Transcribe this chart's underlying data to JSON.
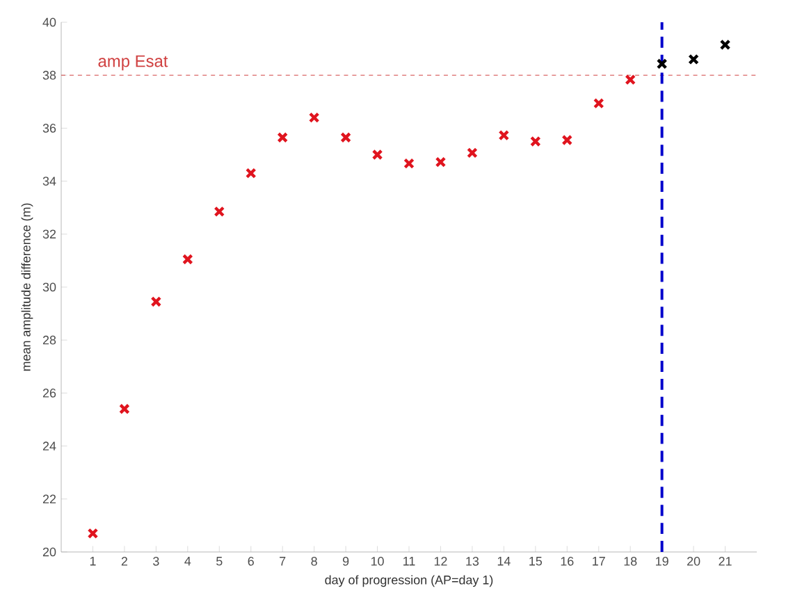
{
  "chart_data": {
    "type": "scatter",
    "xlabel": "day of progression (AP=day 1)",
    "ylabel": "mean amplitude difference (m)",
    "marker": "cross",
    "xlim": [
      0,
      22
    ],
    "ylim": [
      20,
      40
    ],
    "xticks": [
      1,
      2,
      3,
      4,
      5,
      6,
      7,
      8,
      9,
      10,
      11,
      12,
      13,
      14,
      15,
      16,
      17,
      18,
      19,
      20,
      21
    ],
    "yticks": [
      20,
      22,
      24,
      26,
      28,
      30,
      32,
      34,
      36,
      38,
      40
    ],
    "series": [
      {
        "color": "#e0141e",
        "x": [
          1,
          2,
          3,
          4,
          5,
          6,
          7,
          8,
          9,
          10,
          11,
          12,
          13,
          14,
          15,
          16,
          17,
          18
        ],
        "values": [
          20.7,
          25.4,
          29.45,
          31.05,
          32.85,
          34.3,
          35.65,
          36.4,
          35.65,
          35.0,
          34.67,
          34.72,
          35.07,
          35.73,
          35.5,
          35.55,
          36.94,
          37.83
        ]
      },
      {
        "color": "#000000",
        "x": [
          19,
          20,
          21
        ],
        "values": [
          38.43,
          38.6,
          39.15
        ]
      }
    ],
    "ref_lines": [
      {
        "axis": "y",
        "value": 38,
        "label": "amp Esat",
        "color": "#d04040",
        "line_style": "dashed"
      },
      {
        "axis": "x",
        "value": 19,
        "color": "#0000cc",
        "line_style": "dashed"
      }
    ]
  }
}
